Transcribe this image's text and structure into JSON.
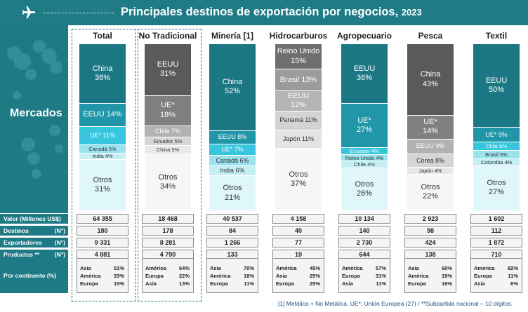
{
  "title": "Principales destinos de exportación por negocios,",
  "year": "2023",
  "side_label": "Mercados",
  "columns": [
    {
      "header": "Total",
      "segments": [
        {
          "label": "China",
          "value": "36%",
          "share": 36,
          "color": "#1c7784",
          "text_color": "#ffffff"
        },
        {
          "label": "EEUU 14%",
          "share": 14,
          "color": "#2196a8",
          "text_color": "#ffffff"
        },
        {
          "label": "UE* 11%",
          "share": 11,
          "color": "#38c6de",
          "text_color": "#ffffff"
        },
        {
          "label": "Canadá 5%",
          "share": 5,
          "color": "#9ae2ee",
          "text_color": "#333333"
        },
        {
          "label": "India 4%",
          "share": 4,
          "color": "#c6eef5",
          "text_color": "#333333"
        },
        {
          "label": "Otros",
          "value": "31%",
          "share": 31,
          "color": "#dff6fa",
          "text_color": "#333333"
        }
      ],
      "stats": [
        "64 355",
        "180",
        "9 331",
        "4 881"
      ],
      "continents": [
        [
          "Asia",
          "51%"
        ],
        [
          "América",
          "33%"
        ],
        [
          "Europa",
          "15%"
        ]
      ]
    },
    {
      "header": "No Tradicional",
      "segments": [
        {
          "label": "EEUU",
          "value": "31%",
          "share": 31,
          "color": "#5a5a5a",
          "text_color": "#ffffff"
        },
        {
          "label": "UE*",
          "value": "18%",
          "share": 18,
          "color": "#808080",
          "text_color": "#ffffff"
        },
        {
          "label": "Chile 7%",
          "share": 7,
          "color": "#b2b2b2",
          "text_color": "#ffffff"
        },
        {
          "label": "Ecuador 5%",
          "share": 5,
          "color": "#d5d5d5",
          "text_color": "#333333"
        },
        {
          "label": "China 5%",
          "share": 5,
          "color": "#e8e8e8",
          "text_color": "#333333"
        },
        {
          "label": "Otros",
          "value": "34%",
          "share": 34,
          "color": "#f6f6f6",
          "text_color": "#333333"
        }
      ],
      "stats": [
        "18 468",
        "178",
        "8 281",
        "4 790"
      ],
      "continents": [
        [
          "América",
          "64%"
        ],
        [
          "Europa",
          "22%"
        ],
        [
          "Asia",
          "13%"
        ]
      ]
    },
    {
      "header": "Minería [1]",
      "segments": [
        {
          "label": "China",
          "value": "52%",
          "share": 52,
          "color": "#1c7784",
          "text_color": "#ffffff"
        },
        {
          "label": "EEUU 8%",
          "share": 8,
          "color": "#2196a8",
          "text_color": "#ffffff"
        },
        {
          "label": "UE* 7%",
          "share": 7,
          "color": "#38c6de",
          "text_color": "#ffffff"
        },
        {
          "label": "Canadá 6%",
          "share": 6,
          "color": "#9ae2ee",
          "text_color": "#333333"
        },
        {
          "label": "India 6%",
          "share": 6,
          "color": "#c6eef5",
          "text_color": "#333333"
        },
        {
          "label": "Otros",
          "value": "21%",
          "share": 21,
          "color": "#dff6fa",
          "text_color": "#333333"
        }
      ],
      "stats": [
        "40 537",
        "84",
        "1 266",
        "133"
      ],
      "continents": [
        [
          "Asia",
          "70%"
        ],
        [
          "América",
          "18%"
        ],
        [
          "Europa",
          "11%"
        ]
      ]
    },
    {
      "header": "Hidrocarburos",
      "segments": [
        {
          "label": "Reino Unido",
          "value": "15%",
          "share": 15,
          "color": "#6e6e6e",
          "text_color": "#ffffff"
        },
        {
          "label": "Brasil 13%",
          "share": 13,
          "color": "#9b9b9b",
          "text_color": "#ffffff"
        },
        {
          "label": "EEUU",
          "value": "12%",
          "share": 12,
          "color": "#b4b4b4",
          "text_color": "#ffffff"
        },
        {
          "label": "Panamá 11%",
          "share": 11,
          "color": "#d3d3d3",
          "text_color": "#333333"
        },
        {
          "label": "Japón 11%",
          "share": 11,
          "color": "#e3e3e3",
          "text_color": "#333333"
        },
        {
          "label": "Otros",
          "value": "37%",
          "share": 37,
          "color": "#f6f6f6",
          "text_color": "#333333"
        }
      ],
      "stats": [
        "4 158",
        "40",
        "77",
        "19"
      ],
      "continents": [
        [
          "América",
          "45%"
        ],
        [
          "Asia",
          "25%"
        ],
        [
          "Europa",
          "25%"
        ]
      ]
    },
    {
      "header": "Agropecuario",
      "segments": [
        {
          "label": "EEUU",
          "value": "36%",
          "share": 36,
          "color": "#1c7784",
          "text_color": "#ffffff"
        },
        {
          "label": "UE*",
          "value": "27%",
          "share": 27,
          "color": "#2196a8",
          "text_color": "#ffffff"
        },
        {
          "label": "Ecuador 4%",
          "share": 4,
          "color": "#38c6de",
          "text_color": "#ffffff"
        },
        {
          "label": "Reino Unido 4%",
          "share": 4,
          "color": "#9ae2ee",
          "text_color": "#333333"
        },
        {
          "label": "Chile 4%",
          "share": 4,
          "color": "#c6eef5",
          "text_color": "#333333"
        },
        {
          "label": "Otros",
          "value": "26%",
          "share": 26,
          "color": "#dff6fa",
          "text_color": "#333333"
        }
      ],
      "stats": [
        "10 134",
        "140",
        "2 730",
        "644"
      ],
      "continents": [
        [
          "América",
          "57%"
        ],
        [
          "Europa",
          "31%"
        ],
        [
          "Asia",
          "11%"
        ]
      ]
    },
    {
      "header": "Pesca",
      "segments": [
        {
          "label": "China",
          "value": "43%",
          "share": 43,
          "color": "#5a5a5a",
          "text_color": "#ffffff"
        },
        {
          "label": "UE*",
          "value": "14%",
          "share": 14,
          "color": "#808080",
          "text_color": "#ffffff"
        },
        {
          "label": "EEUU 9%",
          "share": 9,
          "color": "#b2b2b2",
          "text_color": "#ffffff"
        },
        {
          "label": "Corea 8%",
          "share": 8,
          "color": "#d5d5d5",
          "text_color": "#333333"
        },
        {
          "label": "Japón 4%",
          "share": 4,
          "color": "#e8e8e8",
          "text_color": "#333333"
        },
        {
          "label": "Otros",
          "value": "22%",
          "share": 22,
          "color": "#f6f6f6",
          "text_color": "#333333"
        }
      ],
      "stats": [
        "2 923",
        "98",
        "424",
        "138"
      ],
      "continents": [
        [
          "Asia",
          "60%"
        ],
        [
          "América",
          "19%"
        ],
        [
          "Europa",
          "16%"
        ]
      ]
    },
    {
      "header": "Textil",
      "segments": [
        {
          "label": "EEUU",
          "value": "50%",
          "share": 50,
          "color": "#1c7784",
          "text_color": "#ffffff"
        },
        {
          "label": "UE* 9%",
          "share": 9,
          "color": "#2196a8",
          "text_color": "#ffffff"
        },
        {
          "label": "Chile 5%",
          "share": 5,
          "color": "#38c6de",
          "text_color": "#ffffff"
        },
        {
          "label": "Brasil 5%",
          "share": 5,
          "color": "#9ae2ee",
          "text_color": "#333333"
        },
        {
          "label": "Colombia 4%",
          "share": 4,
          "color": "#c6eef5",
          "text_color": "#333333"
        },
        {
          "label": "Otros",
          "value": "27%",
          "share": 27,
          "color": "#dff6fa",
          "text_color": "#333333"
        }
      ],
      "stats": [
        "1 602",
        "112",
        "1 872",
        "710"
      ],
      "continents": [
        [
          "América",
          "82%"
        ],
        [
          "Europa",
          "11%"
        ],
        [
          "Asia",
          "6%"
        ]
      ]
    }
  ],
  "stat_rows": [
    {
      "label": "Valor (Millones US$)",
      "unit": ""
    },
    {
      "label": "Destinos",
      "unit": "(N°)"
    },
    {
      "label": "Exportadores",
      "unit": "(N°)"
    },
    {
      "label": "Productos **",
      "unit": "(N°)"
    }
  ],
  "continent_label": "Por continente (%)",
  "footnote": "[1] Metálica + No Metálica. UE*: Unión Europea (27) / **Subpartida nacional – 10 dígitos.",
  "chart_data": {
    "type": "bar",
    "stacked": true,
    "categories": [
      "Total",
      "No Tradicional",
      "Minería [1]",
      "Hidrocarburos",
      "Agropecuario",
      "Pesca",
      "Textil"
    ],
    "unit": "%",
    "stacks": {
      "Total": {
        "China": 36,
        "EEUU": 14,
        "UE*": 11,
        "Canadá": 5,
        "India": 4,
        "Otros": 31
      },
      "No Tradicional": {
        "EEUU": 31,
        "UE*": 18,
        "Chile": 7,
        "Ecuador": 5,
        "China": 5,
        "Otros": 34
      },
      "Minería [1]": {
        "China": 52,
        "EEUU": 8,
        "UE*": 7,
        "Canadá": 6,
        "India": 6,
        "Otros": 21
      },
      "Hidrocarburos": {
        "Reino Unido": 15,
        "Brasil": 13,
        "EEUU": 12,
        "Panamá": 11,
        "Japón": 11,
        "Otros": 37
      },
      "Agropecuario": {
        "EEUU": 36,
        "UE*": 27,
        "Ecuador": 4,
        "Reino Unido": 4,
        "Chile": 4,
        "Otros": 26
      },
      "Pesca": {
        "China": 43,
        "UE*": 14,
        "EEUU": 9,
        "Corea": 8,
        "Japón": 4,
        "Otros": 22
      },
      "Textil": {
        "EEUU": 50,
        "UE*": 9,
        "Chile": 5,
        "Brasil": 5,
        "Colombia": 4,
        "Otros": 27
      }
    }
  }
}
